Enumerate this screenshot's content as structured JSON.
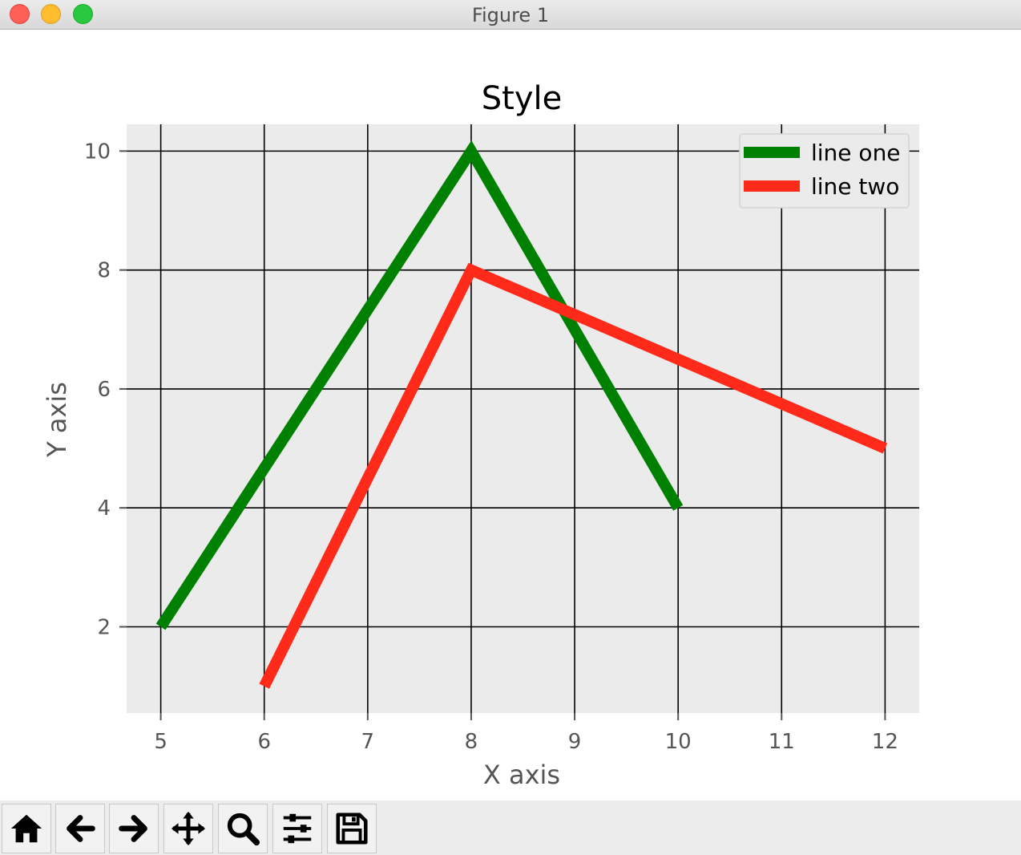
{
  "window": {
    "title": "Figure 1"
  },
  "toolbar": {
    "buttons": [
      {
        "name": "home-button",
        "icon": "home-icon"
      },
      {
        "name": "back-button",
        "icon": "arrow-left-icon"
      },
      {
        "name": "forward-button",
        "icon": "arrow-right-icon"
      },
      {
        "name": "pan-button",
        "icon": "move-icon"
      },
      {
        "name": "zoom-button",
        "icon": "search-icon"
      },
      {
        "name": "configure-subplots-button",
        "icon": "sliders-icon"
      },
      {
        "name": "save-button",
        "icon": "save-icon"
      }
    ]
  },
  "chart_data": {
    "type": "line",
    "title": "Style",
    "xlabel": "X axis",
    "ylabel": "Y axis",
    "xlim": [
      4.67,
      12.33
    ],
    "ylim": [
      0.55,
      10.45
    ],
    "xticks": [
      5,
      6,
      7,
      8,
      9,
      10,
      11,
      12
    ],
    "yticks": [
      2,
      4,
      6,
      8,
      10
    ],
    "grid": true,
    "legend_position": "upper right",
    "series": [
      {
        "name": "line one",
        "color": "#008000",
        "x": [
          5,
          8,
          10
        ],
        "y": [
          2,
          10,
          4
        ]
      },
      {
        "name": "line two",
        "color": "#ff2a1a",
        "x": [
          6,
          8,
          12
        ],
        "y": [
          1,
          8,
          5
        ]
      }
    ]
  }
}
